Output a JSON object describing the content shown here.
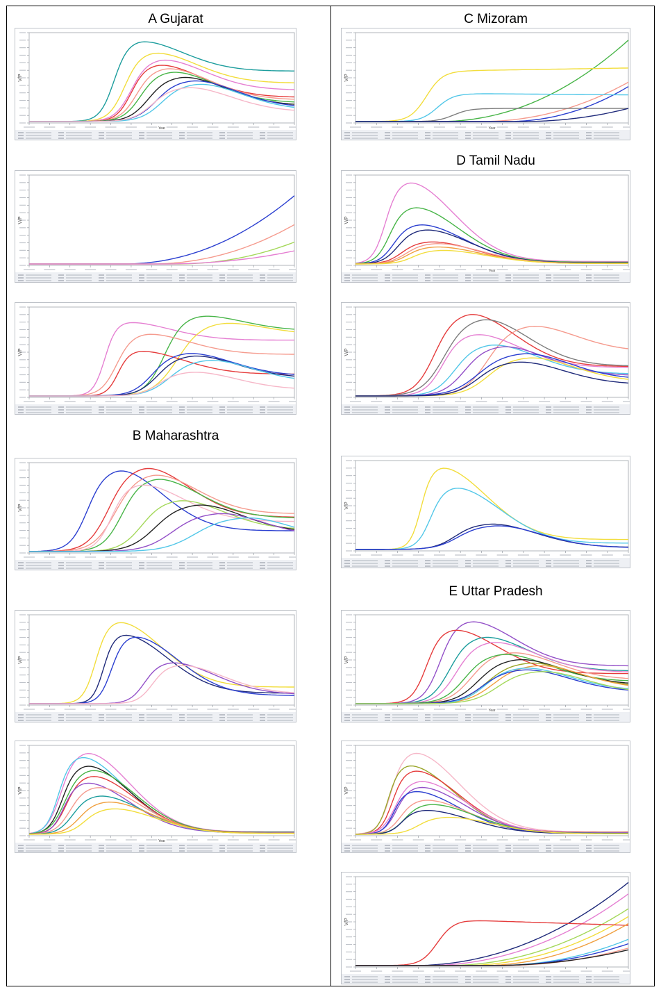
{
  "regions": {
    "gujarat": "A Gujarat",
    "maharashtra": "B Maharashtra",
    "mizoram": "C Mizoram",
    "tamil_nadu": "D Tamil Nadu",
    "uttar_pradesh": "E Uttar Pradesh"
  },
  "colors": {
    "yellow": "#f2dd3c",
    "pink": "#e57fd2",
    "red": "#e53c3c",
    "salmon": "#f59b8e",
    "blue": "#2b3fd0",
    "navy": "#1f2a7a",
    "green": "#48b548",
    "lightgreen": "#a4d85a",
    "teal": "#1c9d9d",
    "cyan": "#52c7e8",
    "gray": "#7d7d7d",
    "black": "#222222",
    "orange": "#f0a040",
    "lightpink": "#f6b7c8",
    "purple": "#9350c8",
    "olive": "#9aa62a"
  },
  "chart_data": [
    {
      "id": "A1",
      "type": "line",
      "xlabel": "Year",
      "ylabel": "V/P",
      "series": [
        {
          "color": "teal",
          "shape": "peak",
          "onset": 0.24,
          "peak": 0.4,
          "height": 0.93,
          "tail": 0.62
        },
        {
          "color": "yellow",
          "shape": "peak",
          "onset": 0.27,
          "peak": 0.45,
          "height": 0.8,
          "tail": 0.55
        },
        {
          "color": "pink",
          "shape": "peak",
          "onset": 0.29,
          "peak": 0.48,
          "height": 0.72,
          "tail": 0.5
        },
        {
          "color": "red",
          "shape": "peak",
          "onset": 0.3,
          "peak": 0.47,
          "height": 0.66,
          "tail": 0.42
        },
        {
          "color": "salmon",
          "shape": "peak",
          "onset": 0.31,
          "peak": 0.5,
          "height": 0.62,
          "tail": 0.4
        },
        {
          "color": "green",
          "shape": "peak",
          "onset": 0.32,
          "peak": 0.52,
          "height": 0.58,
          "tail": 0.37
        },
        {
          "color": "black",
          "shape": "peak",
          "onset": 0.34,
          "peak": 0.56,
          "height": 0.52,
          "tail": 0.35
        },
        {
          "color": "blue",
          "shape": "peak",
          "onset": 0.36,
          "peak": 0.6,
          "height": 0.48,
          "tail": 0.33
        },
        {
          "color": "cyan",
          "shape": "peak",
          "onset": 0.38,
          "peak": 0.62,
          "height": 0.44,
          "tail": 0.3
        },
        {
          "color": "lightpink",
          "shape": "peak",
          "onset": 0.35,
          "peak": 0.58,
          "height": 0.4,
          "tail": 0.28
        }
      ]
    },
    {
      "id": "A2",
      "type": "line",
      "xlabel": "",
      "ylabel": "V/P",
      "series": [
        {
          "color": "blue",
          "shape": "rise",
          "onset": 0.35,
          "height": 0.78
        },
        {
          "color": "salmon",
          "shape": "rise",
          "onset": 0.45,
          "height": 0.45
        },
        {
          "color": "lightgreen",
          "shape": "rise",
          "onset": 0.55,
          "height": 0.25
        },
        {
          "color": "pink",
          "shape": "rise",
          "onset": 0.5,
          "height": 0.15
        }
      ]
    },
    {
      "id": "A3",
      "type": "line",
      "xlabel": "",
      "ylabel": "V/P",
      "series": [
        {
          "color": "pink",
          "shape": "peak",
          "onset": 0.22,
          "peak": 0.35,
          "height": 0.85,
          "tail": 0.75
        },
        {
          "color": "green",
          "shape": "peak",
          "onset": 0.4,
          "peak": 0.62,
          "height": 0.93,
          "tail": 0.8
        },
        {
          "color": "yellow",
          "shape": "peak",
          "onset": 0.42,
          "peak": 0.7,
          "height": 0.85,
          "tail": 0.82
        },
        {
          "color": "salmon",
          "shape": "peak",
          "onset": 0.24,
          "peak": 0.42,
          "height": 0.72,
          "tail": 0.66
        },
        {
          "color": "red",
          "shape": "peak",
          "onset": 0.27,
          "peak": 0.4,
          "height": 0.52,
          "tail": 0.48
        },
        {
          "color": "blue",
          "shape": "peak",
          "onset": 0.35,
          "peak": 0.58,
          "height": 0.5,
          "tail": 0.46
        },
        {
          "color": "navy",
          "shape": "peak",
          "onset": 0.37,
          "peak": 0.6,
          "height": 0.47,
          "tail": 0.44
        },
        {
          "color": "cyan",
          "shape": "peak",
          "onset": 0.4,
          "peak": 0.66,
          "height": 0.42,
          "tail": 0.38
        },
        {
          "color": "lightpink",
          "shape": "peak",
          "onset": 0.38,
          "peak": 0.6,
          "height": 0.28,
          "tail": 0.26
        }
      ]
    },
    {
      "id": "B1",
      "type": "line",
      "xlabel": "",
      "ylabel": "V/P",
      "series": [
        {
          "color": "blue",
          "shape": "peak",
          "onset": 0.12,
          "peak": 0.32,
          "height": 0.95,
          "tail": 0.25
        },
        {
          "color": "red",
          "shape": "peak",
          "onset": 0.18,
          "peak": 0.42,
          "height": 0.98,
          "tail": 0.4
        },
        {
          "color": "salmon",
          "shape": "peak",
          "onset": 0.2,
          "peak": 0.45,
          "height": 0.9,
          "tail": 0.48
        },
        {
          "color": "green",
          "shape": "peak",
          "onset": 0.24,
          "peak": 0.46,
          "height": 0.85,
          "tail": 0.45
        },
        {
          "color": "lightpink",
          "shape": "peak",
          "onset": 0.22,
          "peak": 0.4,
          "height": 0.78,
          "tail": 0.44
        },
        {
          "color": "lightgreen",
          "shape": "peak",
          "onset": 0.3,
          "peak": 0.55,
          "height": 0.6,
          "tail": 0.42
        },
        {
          "color": "black",
          "shape": "peak",
          "onset": 0.33,
          "peak": 0.62,
          "height": 0.55,
          "tail": 0.4
        },
        {
          "color": "purple",
          "shape": "peak",
          "onset": 0.38,
          "peak": 0.7,
          "height": 0.45,
          "tail": 0.38
        },
        {
          "color": "cyan",
          "shape": "peak",
          "onset": 0.45,
          "peak": 0.8,
          "height": 0.4,
          "tail": 0.36
        }
      ]
    },
    {
      "id": "B2",
      "type": "line",
      "xlabel": "",
      "ylabel": "V/P",
      "series": [
        {
          "color": "yellow",
          "shape": "peak",
          "onset": 0.18,
          "peak": 0.32,
          "height": 0.95,
          "tail": 0.2
        },
        {
          "color": "navy",
          "shape": "peak",
          "onset": 0.22,
          "peak": 0.34,
          "height": 0.8,
          "tail": 0.15
        },
        {
          "color": "blue",
          "shape": "peak",
          "onset": 0.24,
          "peak": 0.38,
          "height": 0.78,
          "tail": 0.12
        },
        {
          "color": "purple",
          "shape": "peak",
          "onset": 0.35,
          "peak": 0.52,
          "height": 0.48,
          "tail": 0.22
        },
        {
          "color": "lightpink",
          "shape": "peak",
          "onset": 0.38,
          "peak": 0.55,
          "height": 0.45,
          "tail": 0.25
        }
      ]
    },
    {
      "id": "B3",
      "type": "line",
      "xlabel": "Year",
      "ylabel": "V/P",
      "series": [
        {
          "color": "pink",
          "shape": "peak",
          "onset": 0.04,
          "peak": 0.2,
          "height": 0.95,
          "tail": 0.03
        },
        {
          "color": "cyan",
          "shape": "peak",
          "onset": 0.04,
          "peak": 0.18,
          "height": 0.9,
          "tail": 0.03
        },
        {
          "color": "black",
          "shape": "peak",
          "onset": 0.05,
          "peak": 0.2,
          "height": 0.8,
          "tail": 0.03
        },
        {
          "color": "green",
          "shape": "peak",
          "onset": 0.05,
          "peak": 0.22,
          "height": 0.75,
          "tail": 0.03
        },
        {
          "color": "red",
          "shape": "peak",
          "onset": 0.06,
          "peak": 0.22,
          "height": 0.68,
          "tail": 0.03
        },
        {
          "color": "purple",
          "shape": "peak",
          "onset": 0.06,
          "peak": 0.2,
          "height": 0.6,
          "tail": 0.03
        },
        {
          "color": "salmon",
          "shape": "peak",
          "onset": 0.07,
          "peak": 0.24,
          "height": 0.55,
          "tail": 0.03
        },
        {
          "color": "teal",
          "shape": "peak",
          "onset": 0.08,
          "peak": 0.25,
          "height": 0.45,
          "tail": 0.03
        },
        {
          "color": "orange",
          "shape": "peak",
          "onset": 0.1,
          "peak": 0.28,
          "height": 0.38,
          "tail": 0.03
        },
        {
          "color": "yellow",
          "shape": "peak",
          "onset": 0.12,
          "peak": 0.3,
          "height": 0.3,
          "tail": 0.03
        }
      ]
    },
    {
      "id": "C1",
      "type": "line",
      "xlabel": "Year",
      "ylabel": "V/P",
      "series": [
        {
          "color": "green",
          "shape": "rise",
          "onset": 0.3,
          "height": 0.93
        },
        {
          "color": "yellow",
          "shape": "plateau",
          "onset": 0.26,
          "height": 0.58,
          "end": 0.62
        },
        {
          "color": "salmon",
          "shape": "rise",
          "onset": 0.45,
          "height": 0.45
        },
        {
          "color": "blue",
          "shape": "rise",
          "onset": 0.55,
          "height": 0.4
        },
        {
          "color": "cyan",
          "shape": "plateau",
          "onset": 0.3,
          "height": 0.32,
          "end": 0.3
        },
        {
          "color": "gray",
          "shape": "plateau",
          "onset": 0.36,
          "height": 0.15,
          "end": 0.15
        },
        {
          "color": "navy",
          "shape": "rise",
          "onset": 0.6,
          "height": 0.15
        }
      ]
    },
    {
      "id": "D1",
      "type": "line",
      "xlabel": "Year",
      "ylabel": "V/P",
      "series": [
        {
          "color": "pink",
          "shape": "peak",
          "onset": 0.04,
          "peak": 0.18,
          "height": 0.95,
          "tail": 0.03
        },
        {
          "color": "green",
          "shape": "peak",
          "onset": 0.05,
          "peak": 0.2,
          "height": 0.66,
          "tail": 0.03
        },
        {
          "color": "blue",
          "shape": "peak",
          "onset": 0.06,
          "peak": 0.22,
          "height": 0.46,
          "tail": 0.03
        },
        {
          "color": "navy",
          "shape": "peak",
          "onset": 0.07,
          "peak": 0.24,
          "height": 0.4,
          "tail": 0.03
        },
        {
          "color": "red",
          "shape": "peak",
          "onset": 0.08,
          "peak": 0.26,
          "height": 0.26,
          "tail": 0.03
        },
        {
          "color": "salmon",
          "shape": "peak",
          "onset": 0.09,
          "peak": 0.28,
          "height": 0.24,
          "tail": 0.03
        },
        {
          "color": "orange",
          "shape": "peak",
          "onset": 0.1,
          "peak": 0.28,
          "height": 0.2,
          "tail": 0.03
        },
        {
          "color": "yellow",
          "shape": "peak",
          "onset": 0.12,
          "peak": 0.3,
          "height": 0.16,
          "tail": 0.03
        }
      ]
    },
    {
      "id": "D2",
      "type": "line",
      "xlabel": "",
      "ylabel": "V/P",
      "series": [
        {
          "color": "red",
          "shape": "peak",
          "onset": 0.18,
          "peak": 0.4,
          "height": 0.96,
          "tail": 0.35
        },
        {
          "color": "gray",
          "shape": "peak",
          "onset": 0.2,
          "peak": 0.45,
          "height": 0.9,
          "tail": 0.38
        },
        {
          "color": "salmon",
          "shape": "peak",
          "onset": 0.35,
          "peak": 0.62,
          "height": 0.82,
          "tail": 0.62
        },
        {
          "color": "pink",
          "shape": "peak",
          "onset": 0.22,
          "peak": 0.42,
          "height": 0.72,
          "tail": 0.45
        },
        {
          "color": "cyan",
          "shape": "peak",
          "onset": 0.25,
          "peak": 0.48,
          "height": 0.6,
          "tail": 0.42
        },
        {
          "color": "purple",
          "shape": "peak",
          "onset": 0.28,
          "peak": 0.52,
          "height": 0.58,
          "tail": 0.4
        },
        {
          "color": "blue",
          "shape": "peak",
          "onset": 0.3,
          "peak": 0.6,
          "height": 0.5,
          "tail": 0.38
        },
        {
          "color": "yellow",
          "shape": "peak",
          "onset": 0.35,
          "peak": 0.62,
          "height": 0.45,
          "tail": 0.36
        },
        {
          "color": "navy",
          "shape": "peak",
          "onset": 0.32,
          "peak": 0.58,
          "height": 0.4,
          "tail": 0.33
        }
      ]
    },
    {
      "id": "D3",
      "type": "line",
      "xlabel": "",
      "ylabel": "V/P",
      "series": [
        {
          "color": "yellow",
          "shape": "peak",
          "onset": 0.18,
          "peak": 0.3,
          "height": 0.95,
          "tail": 0.12
        },
        {
          "color": "cyan",
          "shape": "peak",
          "onset": 0.2,
          "peak": 0.35,
          "height": 0.72,
          "tail": 0.1
        },
        {
          "color": "navy",
          "shape": "peak",
          "onset": 0.25,
          "peak": 0.48,
          "height": 0.3,
          "tail": 0.08
        },
        {
          "color": "blue",
          "shape": "peak",
          "onset": 0.25,
          "peak": 0.5,
          "height": 0.28,
          "tail": 0.07
        }
      ]
    },
    {
      "id": "E1",
      "type": "line",
      "xlabel": "Year",
      "ylabel": "V/P",
      "series": [
        {
          "color": "purple",
          "shape": "peak",
          "onset": 0.22,
          "peak": 0.4,
          "height": 0.96,
          "tail": 0.45
        },
        {
          "color": "red",
          "shape": "peak",
          "onset": 0.18,
          "peak": 0.34,
          "height": 0.86,
          "tail": 0.4
        },
        {
          "color": "teal",
          "shape": "peak",
          "onset": 0.24,
          "peak": 0.45,
          "height": 0.78,
          "tail": 0.48
        },
        {
          "color": "pink",
          "shape": "peak",
          "onset": 0.26,
          "peak": 0.48,
          "height": 0.72,
          "tail": 0.5
        },
        {
          "color": "salmon",
          "shape": "peak",
          "onset": 0.3,
          "peak": 0.55,
          "height": 0.6,
          "tail": 0.46
        },
        {
          "color": "green",
          "shape": "peak",
          "onset": 0.28,
          "peak": 0.52,
          "height": 0.58,
          "tail": 0.44
        },
        {
          "color": "black",
          "shape": "peak",
          "onset": 0.32,
          "peak": 0.58,
          "height": 0.52,
          "tail": 0.42
        },
        {
          "color": "olive",
          "shape": "peak",
          "onset": 0.34,
          "peak": 0.62,
          "height": 0.48,
          "tail": 0.4
        },
        {
          "color": "orange",
          "shape": "peak",
          "onset": 0.36,
          "peak": 0.65,
          "height": 0.45,
          "tail": 0.38
        },
        {
          "color": "cyan",
          "shape": "peak",
          "onset": 0.35,
          "peak": 0.6,
          "height": 0.42,
          "tail": 0.36
        },
        {
          "color": "blue",
          "shape": "peak",
          "onset": 0.33,
          "peak": 0.6,
          "height": 0.4,
          "tail": 0.34
        },
        {
          "color": "lightgreen",
          "shape": "peak",
          "onset": 0.38,
          "peak": 0.66,
          "height": 0.38,
          "tail": 0.32
        }
      ]
    },
    {
      "id": "E2",
      "type": "line",
      "xlabel": "",
      "ylabel": "V/P",
      "series": [
        {
          "color": "lightpink",
          "shape": "peak",
          "onset": 0.06,
          "peak": 0.2,
          "height": 0.95,
          "tail": 0.03
        },
        {
          "color": "olive",
          "shape": "peak",
          "onset": 0.06,
          "peak": 0.18,
          "height": 0.8,
          "tail": 0.03
        },
        {
          "color": "red",
          "shape": "peak",
          "onset": 0.07,
          "peak": 0.2,
          "height": 0.74,
          "tail": 0.03
        },
        {
          "color": "pink",
          "shape": "peak",
          "onset": 0.07,
          "peak": 0.22,
          "height": 0.62,
          "tail": 0.03
        },
        {
          "color": "purple",
          "shape": "peak",
          "onset": 0.08,
          "peak": 0.22,
          "height": 0.55,
          "tail": 0.03
        },
        {
          "color": "blue",
          "shape": "peak",
          "onset": 0.08,
          "peak": 0.2,
          "height": 0.5,
          "tail": 0.03
        },
        {
          "color": "salmon",
          "shape": "peak",
          "onset": 0.09,
          "peak": 0.24,
          "height": 0.4,
          "tail": 0.03
        },
        {
          "color": "green",
          "shape": "peak",
          "onset": 0.1,
          "peak": 0.26,
          "height": 0.35,
          "tail": 0.03
        },
        {
          "color": "navy",
          "shape": "peak",
          "onset": 0.1,
          "peak": 0.24,
          "height": 0.28,
          "tail": 0.03
        },
        {
          "color": "yellow",
          "shape": "peak",
          "onset": 0.14,
          "peak": 0.32,
          "height": 0.2,
          "tail": 0.03
        }
      ]
    },
    {
      "id": "E3",
      "type": "line",
      "xlabel": "",
      "ylabel": "V/P",
      "series": [
        {
          "color": "navy",
          "shape": "rise",
          "onset": 0.2,
          "height": 0.95
        },
        {
          "color": "pink",
          "shape": "rise",
          "onset": 0.25,
          "height": 0.82
        },
        {
          "color": "lightgreen",
          "shape": "rise",
          "onset": 0.32,
          "height": 0.65
        },
        {
          "color": "yellow",
          "shape": "rise",
          "onset": 0.38,
          "height": 0.56
        },
        {
          "color": "red",
          "shape": "plateau",
          "onset": 0.3,
          "height": 0.52,
          "end": 0.44
        },
        {
          "color": "orange",
          "shape": "rise",
          "onset": 0.45,
          "height": 0.48
        },
        {
          "color": "cyan",
          "shape": "rise",
          "onset": 0.5,
          "height": 0.3
        },
        {
          "color": "blue",
          "shape": "rise",
          "onset": 0.5,
          "height": 0.25
        },
        {
          "color": "salmon",
          "shape": "rise",
          "onset": 0.52,
          "height": 0.2
        },
        {
          "color": "black",
          "shape": "rise",
          "onset": 0.48,
          "height": 0.18
        }
      ]
    }
  ]
}
